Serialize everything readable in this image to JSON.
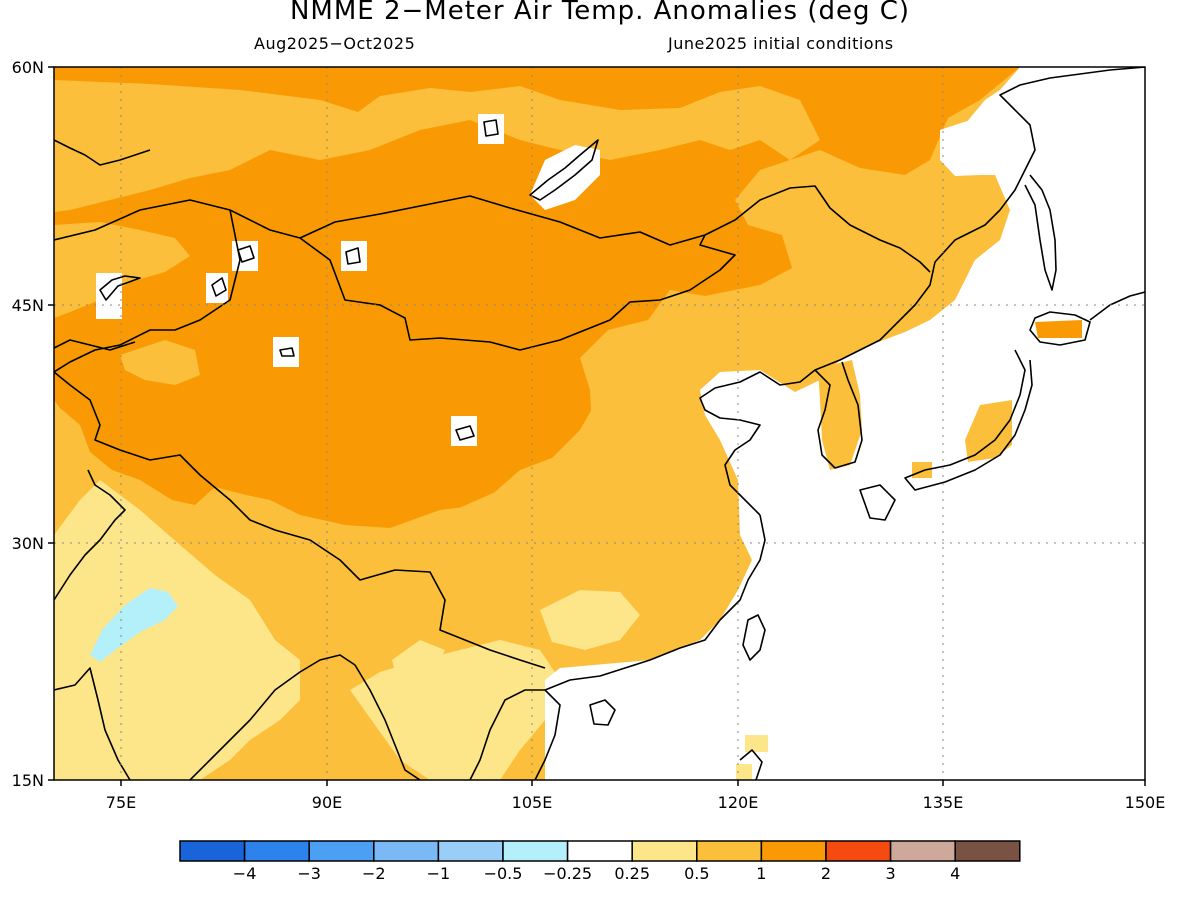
{
  "map": {
    "title": "NMME 2−Meter Air Temp. Anomalies (deg C)",
    "period": "Aug2025−Oct2025",
    "init": "June2025 initial conditions",
    "lat_labels": [
      "60N",
      "45N",
      "30N",
      "15N"
    ],
    "lon_labels": [
      "75E",
      "90E",
      "105E",
      "120E",
      "135E",
      "150E"
    ],
    "extent": {
      "lon": [
        69,
        150
      ],
      "lat": [
        15,
        60
      ]
    },
    "colorbar": {
      "colors": [
        "#1864d8",
        "#2d82ec",
        "#4ca0f4",
        "#7ab8f6",
        "#98cef8",
        "#b4f0fa",
        "#ffffff",
        "#fde68a",
        "#fbbf3c",
        "#f99a05",
        "#f54a10",
        "#cea89a",
        "#7a5244"
      ],
      "labels": [
        "−4",
        "−3",
        "−2",
        "−1",
        "−0.5",
        "−0.25",
        "0.25",
        "0.5",
        "1",
        "2",
        "3",
        "4"
      ]
    }
  }
}
